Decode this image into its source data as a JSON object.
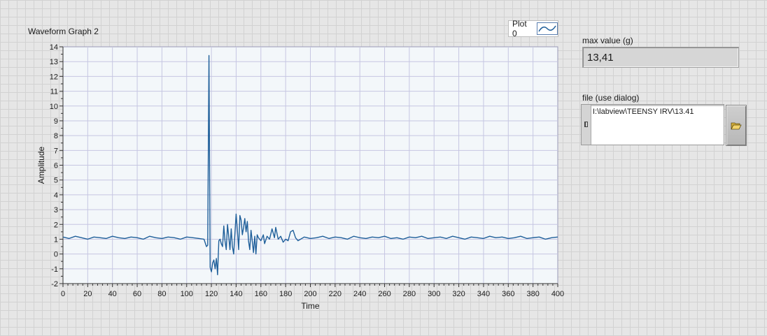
{
  "graph": {
    "title": "Waveform Graph 2",
    "legend_label": "Plot 0",
    "plot_icon": "waveform-line-icon"
  },
  "chart_data": {
    "type": "line",
    "title": "",
    "xlabel": "Time",
    "ylabel": "Amplitude",
    "xlim": [
      0,
      400
    ],
    "ylim": [
      -2,
      14
    ],
    "x_ticks": [
      0,
      20,
      40,
      60,
      80,
      100,
      120,
      140,
      160,
      180,
      200,
      220,
      240,
      260,
      280,
      300,
      320,
      340,
      360,
      380,
      400
    ],
    "y_ticks": [
      -2,
      -1,
      0,
      1,
      2,
      3,
      4,
      5,
      6,
      7,
      8,
      9,
      10,
      11,
      12,
      13,
      14
    ],
    "grid": true,
    "series": [
      {
        "name": "Plot 0",
        "color": "#1f5f9a",
        "x": [
          0,
          5,
          10,
          15,
          20,
          25,
          30,
          35,
          40,
          45,
          50,
          55,
          60,
          65,
          70,
          75,
          80,
          85,
          90,
          95,
          100,
          105,
          110,
          114,
          116,
          117,
          118,
          119,
          120,
          121,
          122,
          123,
          124,
          125,
          126,
          127,
          128,
          129,
          130,
          131,
          132,
          133,
          134,
          135,
          136,
          137,
          138,
          139,
          140,
          141,
          142,
          143,
          144,
          145,
          146,
          147,
          148,
          149,
          150,
          151,
          152,
          153,
          154,
          155,
          156,
          157,
          158,
          160,
          162,
          163,
          165,
          167,
          169,
          171,
          172,
          174,
          176,
          178,
          180,
          182,
          184,
          186,
          188,
          190,
          195,
          200,
          205,
          210,
          215,
          220,
          225,
          230,
          235,
          240,
          245,
          250,
          255,
          260,
          265,
          270,
          275,
          280,
          285,
          290,
          295,
          300,
          305,
          310,
          315,
          320,
          325,
          330,
          335,
          340,
          345,
          350,
          355,
          360,
          365,
          370,
          375,
          380,
          385,
          390,
          395,
          400
        ],
        "y": [
          1.15,
          1.05,
          1.2,
          1.1,
          1.0,
          1.15,
          1.1,
          1.05,
          1.2,
          1.1,
          1.05,
          1.15,
          1.1,
          1.0,
          1.2,
          1.1,
          1.05,
          1.15,
          1.1,
          1.0,
          1.15,
          1.1,
          1.05,
          1.0,
          0.5,
          0.6,
          13.41,
          -0.9,
          -1.2,
          -0.6,
          -0.4,
          -1.0,
          -0.3,
          -1.4,
          0.9,
          1.0,
          0.7,
          0.5,
          1.9,
          0.9,
          0.3,
          2.0,
          1.2,
          0.3,
          1.7,
          0.5,
          0.0,
          1.4,
          2.7,
          1.6,
          0.3,
          2.6,
          2.3,
          1.3,
          1.8,
          2.4,
          1.5,
          2.2,
          0.9,
          0.3,
          1.6,
          0.9,
          0.1,
          1.2,
          0.0,
          1.3,
          1.1,
          0.9,
          1.3,
          0.7,
          1.2,
          1.0,
          1.7,
          1.1,
          1.8,
          1.0,
          1.2,
          0.8,
          1.0,
          0.9,
          1.5,
          1.6,
          1.1,
          0.9,
          1.15,
          1.05,
          1.1,
          1.2,
          1.05,
          1.15,
          1.1,
          1.0,
          1.2,
          1.1,
          1.05,
          1.15,
          1.1,
          1.2,
          1.05,
          1.1,
          1.0,
          1.15,
          1.1,
          1.2,
          1.05,
          1.1,
          1.15,
          1.05,
          1.2,
          1.1,
          1.0,
          1.15,
          1.1,
          1.05,
          1.2,
          1.1,
          1.15,
          1.05,
          1.1,
          1.2,
          1.05,
          1.1,
          1.15,
          1.0,
          1.1,
          1.15
        ]
      }
    ]
  },
  "max_value": {
    "label": "max value (g)",
    "value": "13,41"
  },
  "file_path": {
    "label": "file (use dialog)",
    "value": "I:\\labview\\TEENSY IRV\\13.41",
    "browse_icon": "folder-open-icon"
  },
  "colors": {
    "plot_background": "#f3f7fa",
    "grid": "#c6c6e2",
    "trace": "#1f5f9a",
    "panel": "#e6e6e6"
  }
}
